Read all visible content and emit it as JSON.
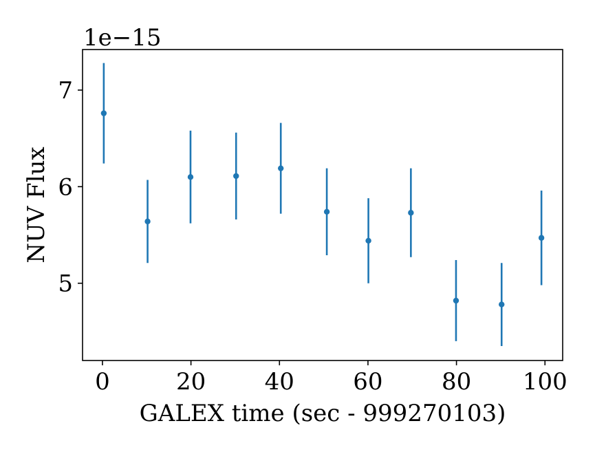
{
  "chart_data": {
    "type": "scatter",
    "title": "",
    "xlabel": "GALEX time (sec - 999270103)",
    "ylabel": "NUV Flux",
    "y_offset_label": "1e−15",
    "xlim": [
      -4.5,
      104
    ],
    "ylim": [
      4.2,
      7.42
    ],
    "x_ticks": [
      0,
      20,
      40,
      60,
      80,
      100
    ],
    "y_ticks": [
      5,
      6,
      7
    ],
    "grid": false,
    "legend": "none",
    "color": "#1f77b4",
    "series": [
      {
        "x": [
          0.3,
          10.2,
          19.9,
          30.2,
          40.3,
          50.7,
          60.1,
          69.7,
          79.9,
          90.2,
          99.2
        ],
        "y": [
          6.76,
          5.64,
          6.1,
          6.11,
          6.19,
          5.74,
          5.44,
          5.73,
          4.82,
          4.78,
          5.47
        ],
        "yerr": [
          0.52,
          0.43,
          0.48,
          0.45,
          0.47,
          0.45,
          0.44,
          0.46,
          0.42,
          0.43,
          0.49
        ]
      }
    ]
  }
}
